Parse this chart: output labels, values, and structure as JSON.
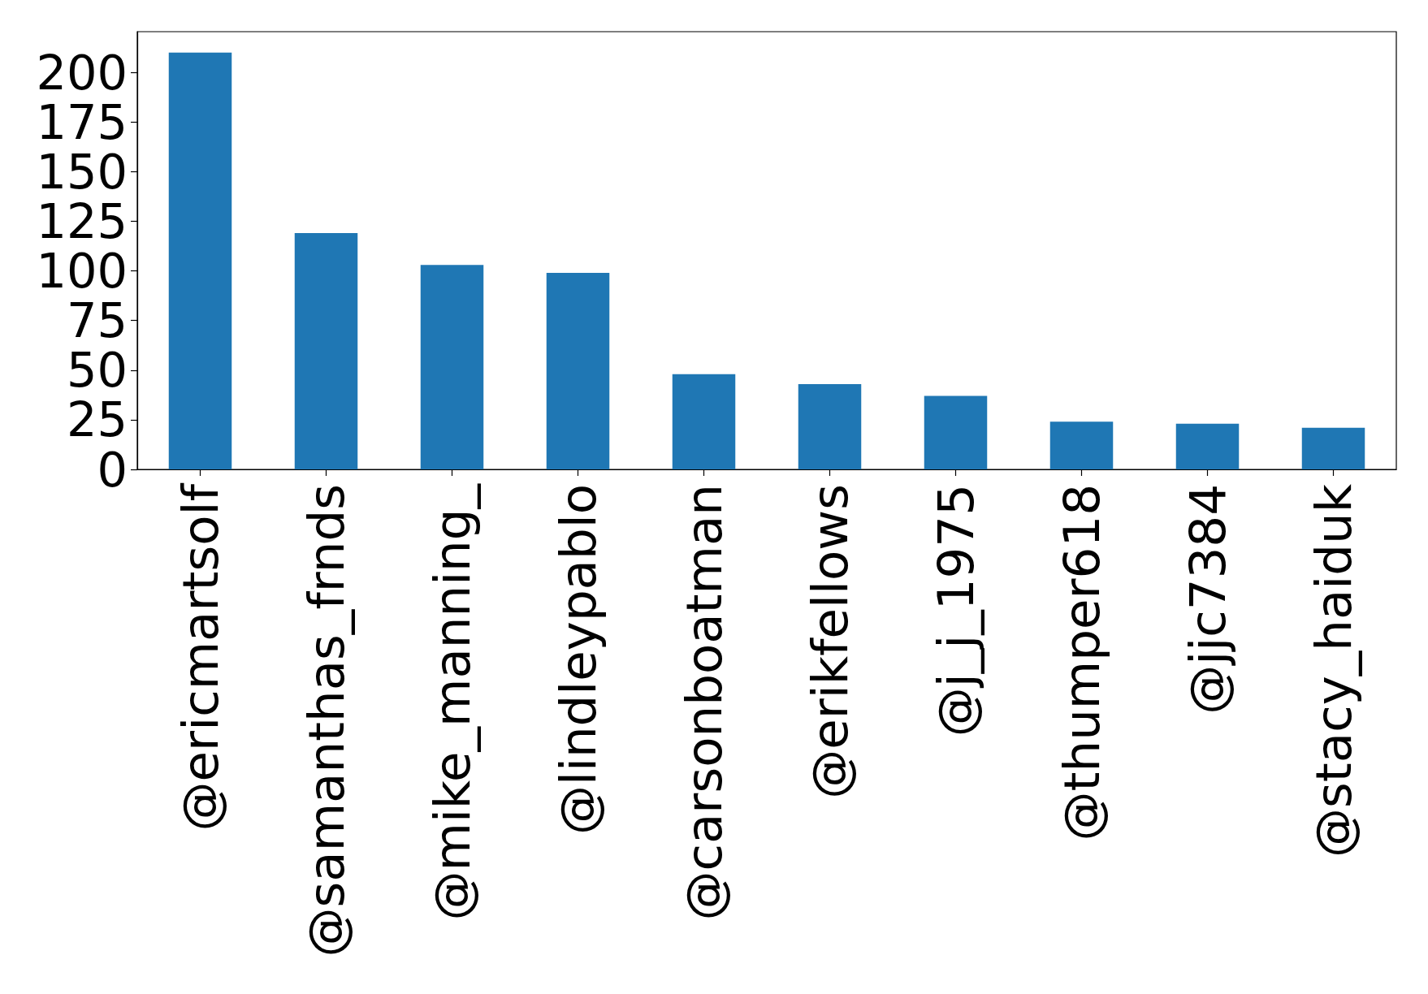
{
  "chart_data": {
    "type": "bar",
    "categories": [
      "@ericmartsolf",
      "@samanthas_frnds",
      "@mike_manning_",
      "@lindleypablo",
      "@carsonboatman",
      "@erikfellows",
      "@j_j_1975",
      "@thumper618",
      "@jjc7384",
      "@stacy_haiduk"
    ],
    "values": [
      210,
      119,
      103,
      99,
      48,
      43,
      37,
      24,
      23,
      21
    ],
    "color": "#1f77b4",
    "ylim": [
      0,
      220.5
    ],
    "yticks": [
      0,
      25,
      50,
      75,
      100,
      125,
      150,
      175,
      200
    ]
  }
}
